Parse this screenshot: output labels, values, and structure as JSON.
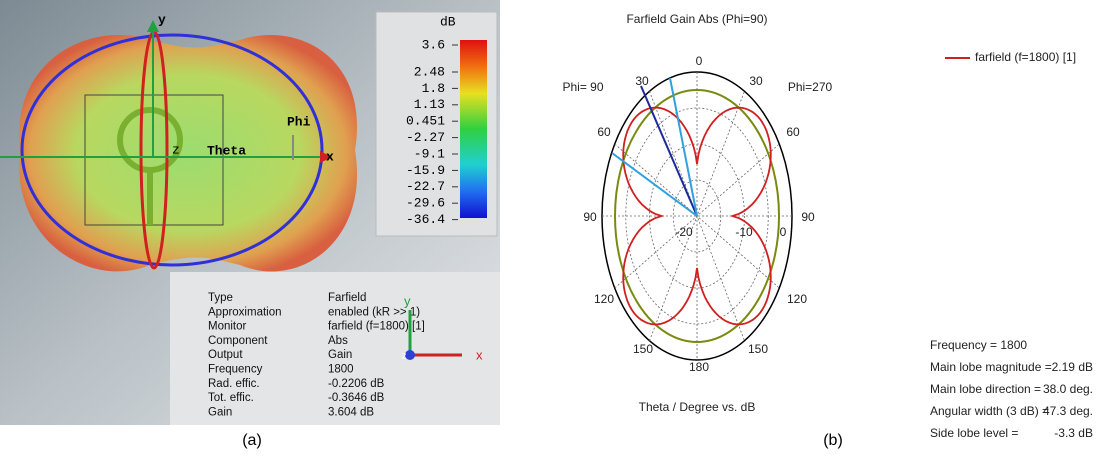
{
  "panel_a": {
    "axes": {
      "y": "y",
      "phi": "Phi",
      "theta": "Theta",
      "x": "x",
      "z": "z"
    },
    "colorbar": {
      "unit": "dB",
      "ticks": [
        "3.6",
        "2.48",
        "1.8",
        "1.13",
        "0.451",
        "-2.27",
        "-9.1",
        "-15.9",
        "-22.7",
        "-29.6",
        "-36.4"
      ]
    },
    "info": {
      "rows": [
        [
          "Type",
          "Farfield"
        ],
        [
          "Approximation",
          "enabled (kR >> 1)"
        ],
        [
          "Monitor",
          "farfield (f=1800) [1]"
        ],
        [
          "Component",
          "Abs"
        ],
        [
          "Output",
          "Gain"
        ],
        [
          "Frequency",
          "1800"
        ],
        [
          "Rad. effic.",
          "-0.2206 dB"
        ],
        [
          "Tot. effic.",
          "-0.3646 dB"
        ],
        [
          "Gain",
          "3.604 dB"
        ]
      ]
    },
    "triad": {
      "y": "y",
      "z": "z",
      "x": "x"
    },
    "caption": "(a)"
  },
  "panel_b": {
    "title": "Farfield Gain Abs (Phi=90)",
    "angle_labels": [
      "0",
      "30",
      "30",
      "60",
      "60",
      "90",
      "90",
      "120",
      "120",
      "150",
      "150",
      "180"
    ],
    "phi_left": "Phi= 90",
    "phi_right": "Phi=270",
    "radial_labels": [
      "-20",
      "-10",
      "0"
    ],
    "legend": "farfield (f=1800) [1]",
    "x_label": "Theta / Degree vs. dB",
    "stats": [
      [
        "Frequency = 1800",
        ""
      ],
      [
        "Main lobe magnitude =",
        "2.19 dB"
      ],
      [
        "Main lobe direction =",
        "38.0 deg."
      ],
      [
        "Angular width (3 dB) =",
        "47.3 deg."
      ],
      [
        "Side lobe level =",
        "-3.3 dB"
      ]
    ],
    "caption": "(b)"
  }
}
